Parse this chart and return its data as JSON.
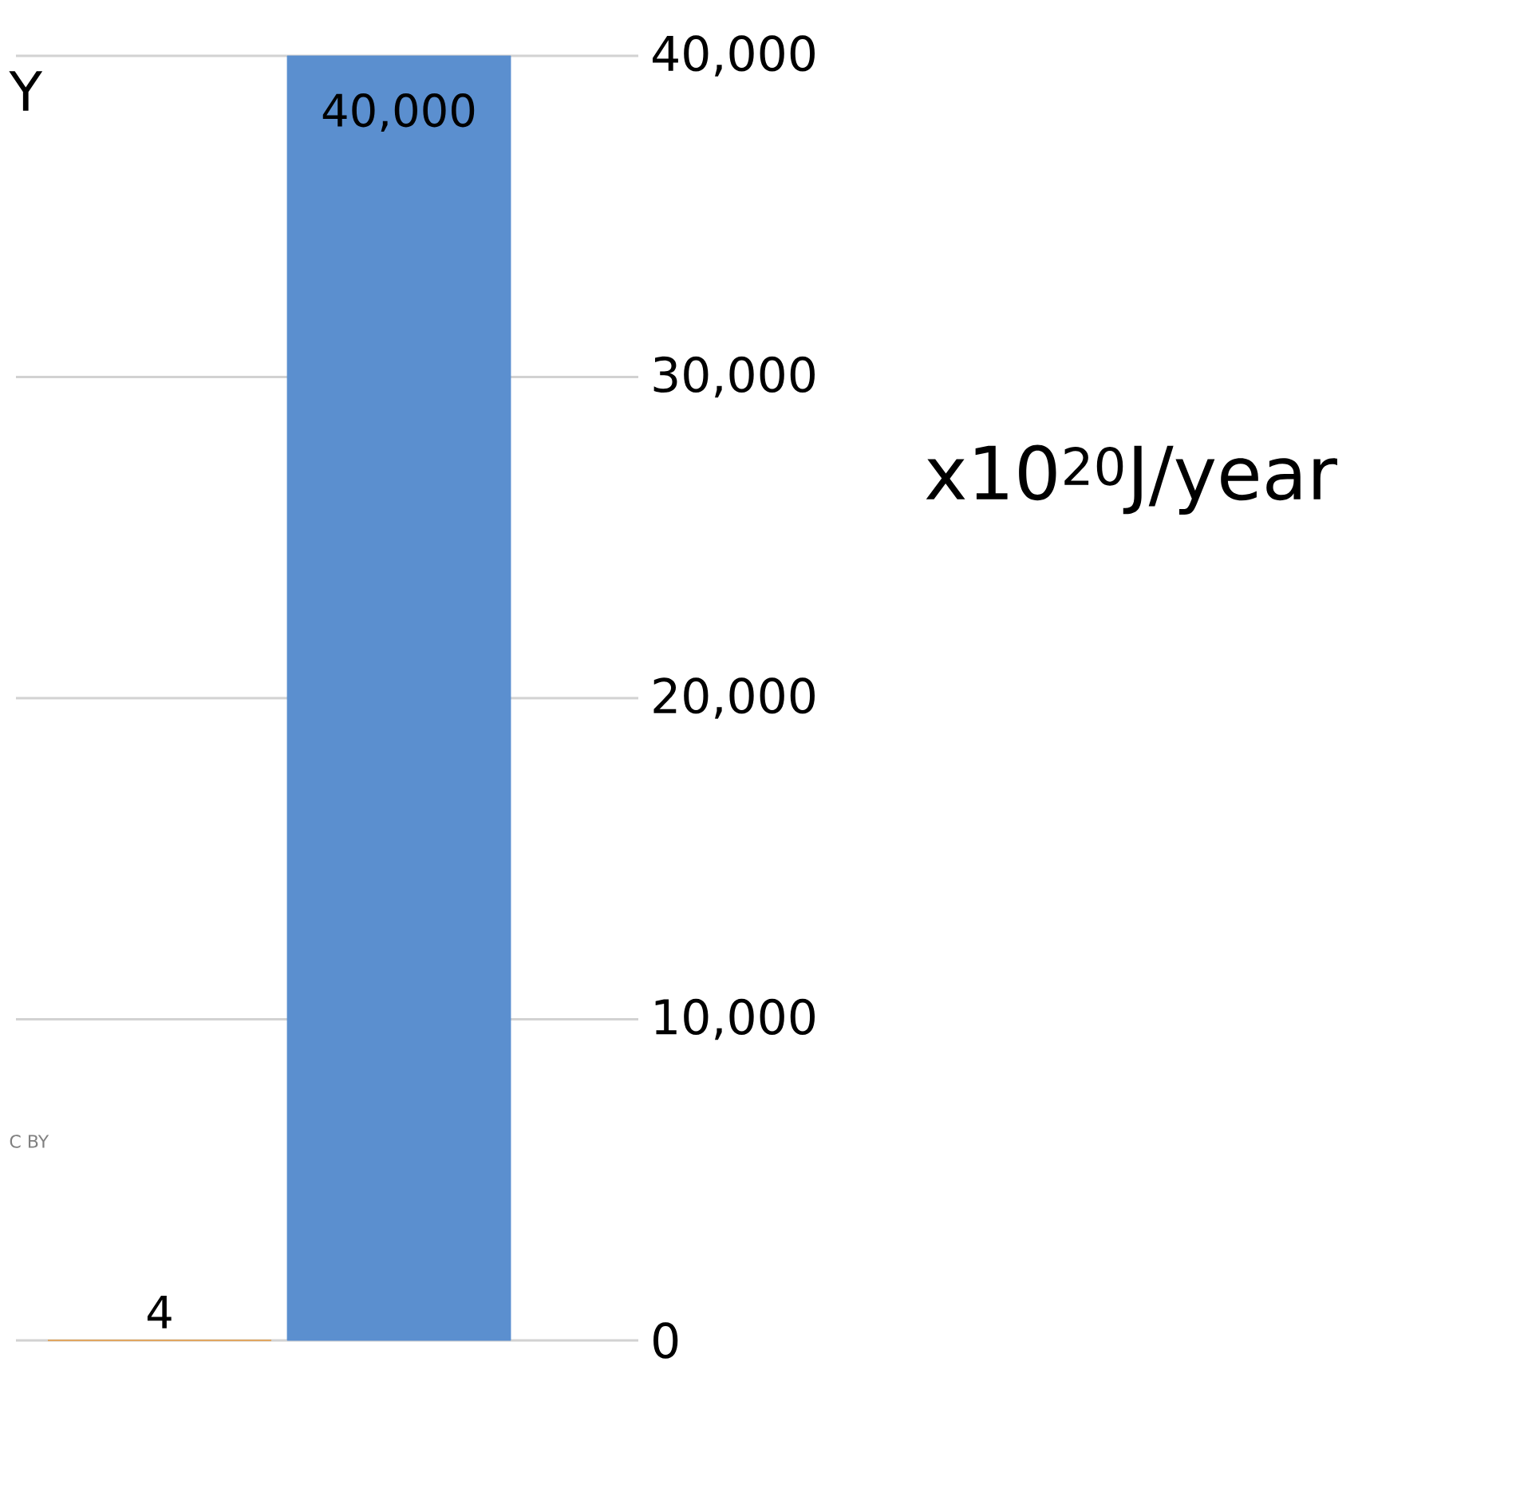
{
  "chart_data": {
    "type": "bar",
    "title": "Y",
    "categories": [
      null,
      null
    ],
    "values": [
      4,
      40000
    ],
    "colors": [
      "#e8922a",
      "#5b8fcf"
    ],
    "value_labels": [
      "4",
      "40,000"
    ],
    "ylabel": "x10$^{20}$J/year",
    "ylim": [
      0,
      40000
    ],
    "yticks": [
      {
        "value": 0,
        "label": "0"
      },
      {
        "value": 10000,
        "label": "10,000"
      },
      {
        "value": 20000,
        "label": "20,000"
      },
      {
        "value": 30000,
        "label": "30,000"
      },
      {
        "value": 40000,
        "label": "40,000"
      }
    ],
    "grid": "y",
    "annotations": [
      "C BY"
    ]
  }
}
